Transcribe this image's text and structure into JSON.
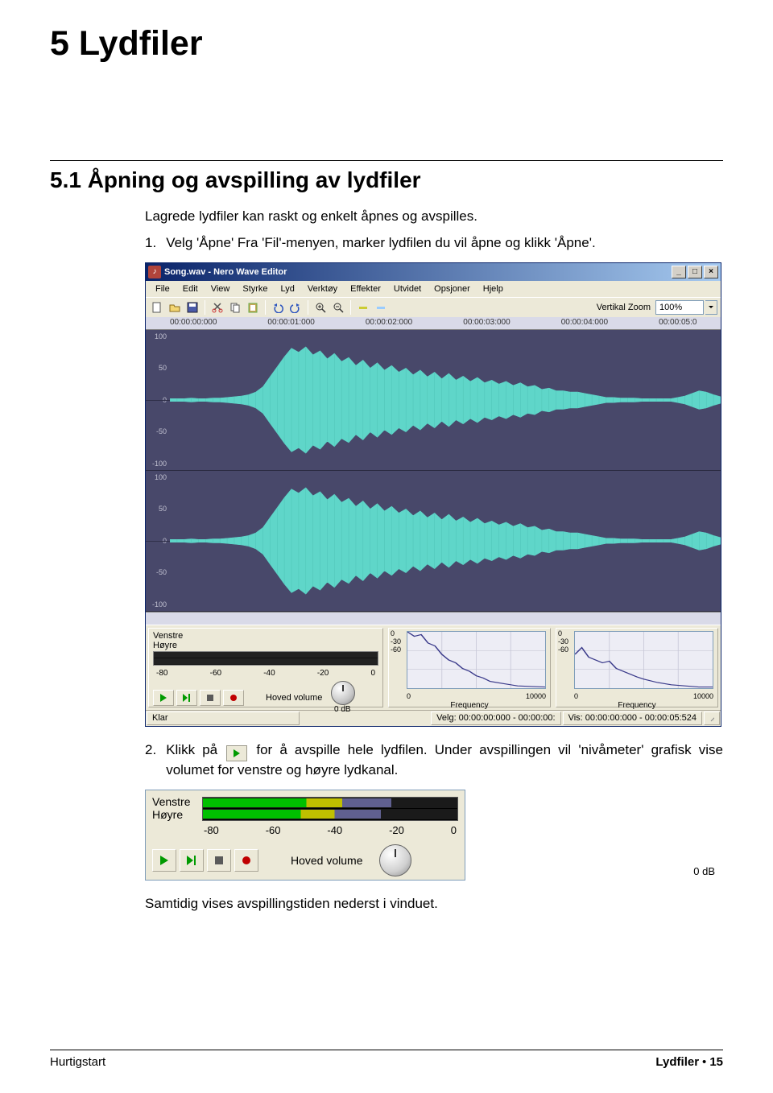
{
  "page": {
    "h1": "5   Lydfiler",
    "h2": "5.1   Åpning og avspilling av lydfiler",
    "intro": "Lagrede lydfiler kan raskt og enkelt åpnes og avspilles.",
    "step1_num": "1.",
    "step1": "Velg 'Åpne' Fra 'Fil'-menyen, marker lydfilen du vil åpne og klikk 'Åpne'.",
    "step2_num": "2.",
    "step2_a": "Klikk på ",
    "step2_b": " for å avspille hele lydfilen. Under avspillingen vil 'nivåmeter' grafisk vise volumet for venstre og høyre lydkanal.",
    "closing": "Samtidig vises avspillingstiden nederst i vinduet.",
    "footer_left": "Hurtigstart",
    "footer_right_a": "Lydfiler",
    "footer_right_b": "15"
  },
  "editor": {
    "title": "Song.wav - Nero Wave Editor",
    "menus": [
      "File",
      "Edit",
      "View",
      "Styrke",
      "Lyd",
      "Verktøy",
      "Effekter",
      "Utvidet",
      "Opsjoner",
      "Hjelp"
    ],
    "zoom_label": "Vertikal Zoom",
    "zoom_value": "100%",
    "time_ticks": [
      "00:00:00:000",
      "00:00:01:000",
      "00:00:02:000",
      "00:00:03:000",
      "00:00:04:000",
      "00:00:05:0"
    ],
    "y_ticks": [
      "100",
      "50",
      "0",
      "-50",
      "-100"
    ],
    "waveform": {
      "color": "#5fd6c9",
      "bg": "#48486a",
      "amplitudes": [
        2,
        2,
        2,
        3,
        2,
        2,
        3,
        3,
        4,
        5,
        6,
        8,
        12,
        20,
        35,
        50,
        65,
        78,
        72,
        80,
        68,
        74,
        62,
        70,
        58,
        64,
        52,
        60,
        48,
        56,
        45,
        52,
        42,
        48,
        38,
        45,
        35,
        42,
        32,
        40,
        30,
        36,
        28,
        34,
        26,
        30,
        24,
        28,
        22,
        26,
        20,
        22,
        16,
        18,
        14,
        14,
        12,
        12,
        10,
        8,
        6,
        4,
        4,
        3,
        3,
        3,
        2,
        2,
        2,
        2,
        2,
        4,
        6,
        10,
        14,
        12,
        8,
        5
      ]
    },
    "bottom": {
      "ch_left": "Venstre",
      "ch_right": "Høyre",
      "vu_ticks": [
        "-80",
        "-60",
        "-40",
        "-20",
        "0"
      ],
      "hoved_volume": "Hoved volume",
      "db": "0 dB",
      "freq": {
        "y_ticks": [
          "0",
          "-30",
          "-60"
        ],
        "x_ticks": [
          "0",
          "10000"
        ],
        "label": "Frequency",
        "line_color": "#3a3a8a",
        "points_l": [
          0,
          1.0,
          0.05,
          0.92,
          0.1,
          0.95,
          0.15,
          0.8,
          0.2,
          0.75,
          0.25,
          0.6,
          0.3,
          0.5,
          0.35,
          0.45,
          0.4,
          0.35,
          0.45,
          0.3,
          0.5,
          0.22,
          0.55,
          0.18,
          0.6,
          0.12,
          0.7,
          0.08,
          0.8,
          0.04,
          0.9,
          0.03,
          1.0,
          0.02
        ],
        "points_r": [
          0,
          0.6,
          0.05,
          0.72,
          0.1,
          0.55,
          0.15,
          0.5,
          0.2,
          0.45,
          0.25,
          0.48,
          0.3,
          0.35,
          0.35,
          0.3,
          0.4,
          0.25,
          0.45,
          0.2,
          0.5,
          0.16,
          0.6,
          0.1,
          0.7,
          0.06,
          0.8,
          0.04,
          0.9,
          0.02,
          1.0,
          0.02
        ]
      }
    },
    "status": {
      "left": "Klar",
      "selection": "Velg: 00:00:00:000 - 00:00:00:",
      "view": "Vis: 00:00:00:000 - 00:00:05:524"
    }
  },
  "volpanel_lg": {
    "ch_left": "Venstre",
    "ch_right": "Høyre",
    "vu_ticks": [
      "-80",
      "-60",
      "-40",
      "-20",
      "0"
    ],
    "fill_left_pct": 74,
    "fill_right_pct": 70,
    "hoved_volume": "Hoved volume",
    "db": "0 dB"
  },
  "colors": {
    "titlebar_start": "#0a246a",
    "titlebar_end": "#a6caf0",
    "panel_bg": "#ece9d8",
    "wave_bg": "#48486a",
    "wave_fg": "#5fd6c9",
    "play_green": "#009a00",
    "record_red": "#c00000"
  }
}
